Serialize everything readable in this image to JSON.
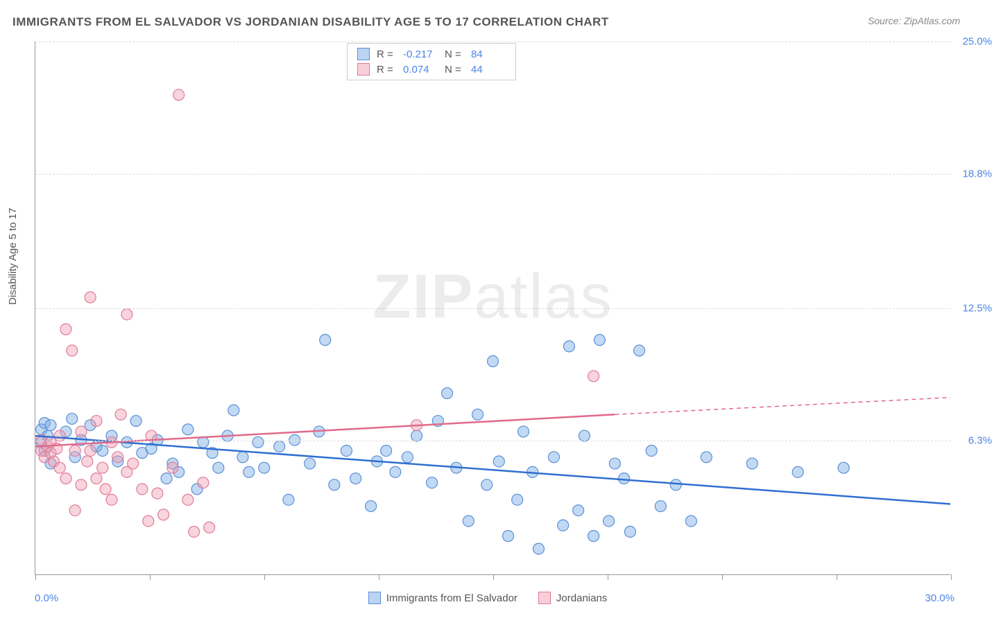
{
  "title": "IMMIGRANTS FROM EL SALVADOR VS JORDANIAN DISABILITY AGE 5 TO 17 CORRELATION CHART",
  "source_prefix": "Source: ",
  "source_name": "ZipAtlas.com",
  "yaxis_label": "Disability Age 5 to 17",
  "watermark_bold": "ZIP",
  "watermark_rest": "atlas",
  "chart": {
    "type": "scatter-with-regression",
    "xlim": [
      0,
      30
    ],
    "ylim": [
      0,
      25
    ],
    "x_min_label": "0.0%",
    "x_max_label": "30.0%",
    "y_ticks": [
      {
        "v": 6.3,
        "label": "6.3%"
      },
      {
        "v": 12.5,
        "label": "12.5%"
      },
      {
        "v": 18.8,
        "label": "18.8%"
      },
      {
        "v": 25.0,
        "label": "25.0%"
      }
    ],
    "x_tick_positions": [
      0,
      3.75,
      7.5,
      11.25,
      15,
      18.75,
      22.5,
      26.25,
      30
    ],
    "grid_color": "#dddddd",
    "background_color": "#ffffff",
    "series": [
      {
        "name": "Immigrants from El Salvador",
        "color_fill": "rgba(120,170,230,0.45)",
        "color_stroke": "#5b8fd6",
        "line_color": "#2f6fd0",
        "R": "-0.217",
        "N": "84",
        "regression": {
          "x1": 0,
          "y1": 6.5,
          "x2": 30,
          "y2": 3.3,
          "dash_after_x": 30
        },
        "points": [
          [
            0.2,
            6.8
          ],
          [
            0.2,
            6.2
          ],
          [
            0.3,
            7.1
          ],
          [
            0.3,
            5.8
          ],
          [
            0.4,
            6.5
          ],
          [
            0.5,
            7.0
          ],
          [
            0.5,
            5.2
          ],
          [
            1.0,
            6.7
          ],
          [
            1.2,
            7.3
          ],
          [
            1.3,
            5.5
          ],
          [
            1.5,
            6.3
          ],
          [
            1.8,
            7.0
          ],
          [
            2.0,
            6.0
          ],
          [
            2.2,
            5.8
          ],
          [
            2.5,
            6.5
          ],
          [
            2.7,
            5.3
          ],
          [
            3.0,
            6.2
          ],
          [
            3.3,
            7.2
          ],
          [
            3.5,
            5.7
          ],
          [
            3.8,
            5.9
          ],
          [
            4.0,
            6.3
          ],
          [
            4.3,
            4.5
          ],
          [
            4.5,
            5.2
          ],
          [
            4.7,
            4.8
          ],
          [
            5.0,
            6.8
          ],
          [
            5.3,
            4.0
          ],
          [
            5.5,
            6.2
          ],
          [
            5.8,
            5.7
          ],
          [
            6.0,
            5.0
          ],
          [
            6.3,
            6.5
          ],
          [
            6.5,
            7.7
          ],
          [
            6.8,
            5.5
          ],
          [
            7.0,
            4.8
          ],
          [
            7.3,
            6.2
          ],
          [
            7.5,
            5.0
          ],
          [
            8.0,
            6.0
          ],
          [
            8.3,
            3.5
          ],
          [
            8.5,
            6.3
          ],
          [
            9.0,
            5.2
          ],
          [
            9.3,
            6.7
          ],
          [
            9.5,
            11.0
          ],
          [
            9.8,
            4.2
          ],
          [
            10.2,
            5.8
          ],
          [
            10.5,
            4.5
          ],
          [
            11.0,
            3.2
          ],
          [
            11.2,
            5.3
          ],
          [
            11.5,
            5.8
          ],
          [
            11.8,
            4.8
          ],
          [
            12.2,
            5.5
          ],
          [
            12.5,
            6.5
          ],
          [
            13.0,
            4.3
          ],
          [
            13.2,
            7.2
          ],
          [
            13.5,
            8.5
          ],
          [
            13.8,
            5.0
          ],
          [
            14.2,
            2.5
          ],
          [
            14.5,
            7.5
          ],
          [
            14.8,
            4.2
          ],
          [
            15.0,
            10.0
          ],
          [
            15.2,
            5.3
          ],
          [
            15.5,
            1.8
          ],
          [
            15.8,
            3.5
          ],
          [
            16.0,
            6.7
          ],
          [
            16.3,
            4.8
          ],
          [
            16.5,
            1.2
          ],
          [
            17.0,
            5.5
          ],
          [
            17.3,
            2.3
          ],
          [
            17.5,
            10.7
          ],
          [
            17.8,
            3.0
          ],
          [
            18.0,
            6.5
          ],
          [
            18.3,
            1.8
          ],
          [
            18.5,
            11.0
          ],
          [
            18.8,
            2.5
          ],
          [
            19.0,
            5.2
          ],
          [
            19.3,
            4.5
          ],
          [
            19.5,
            2.0
          ],
          [
            19.8,
            10.5
          ],
          [
            20.2,
            5.8
          ],
          [
            20.5,
            3.2
          ],
          [
            21.0,
            4.2
          ],
          [
            21.5,
            2.5
          ],
          [
            22.0,
            5.5
          ],
          [
            23.5,
            5.2
          ],
          [
            25.0,
            4.8
          ],
          [
            26.5,
            5.0
          ]
        ]
      },
      {
        "name": "Jordanians",
        "color_fill": "rgba(240,160,180,0.45)",
        "color_stroke": "#e07a9a",
        "line_color": "#e06a8a",
        "R": "0.074",
        "N": "44",
        "regression": {
          "x1": 0,
          "y1": 6.0,
          "x2": 19,
          "y2": 7.5,
          "dash_after_x": 19,
          "x3": 30,
          "y3": 8.3
        },
        "points": [
          [
            0.2,
            5.8
          ],
          [
            0.2,
            6.3
          ],
          [
            0.3,
            5.5
          ],
          [
            0.4,
            6.0
          ],
          [
            0.5,
            5.7
          ],
          [
            0.5,
            6.2
          ],
          [
            0.6,
            5.3
          ],
          [
            0.7,
            5.9
          ],
          [
            0.8,
            6.5
          ],
          [
            0.8,
            5.0
          ],
          [
            1.0,
            11.5
          ],
          [
            1.0,
            4.5
          ],
          [
            1.2,
            10.5
          ],
          [
            1.3,
            5.8
          ],
          [
            1.3,
            3.0
          ],
          [
            1.5,
            4.2
          ],
          [
            1.5,
            6.7
          ],
          [
            1.7,
            5.3
          ],
          [
            1.8,
            13.0
          ],
          [
            1.8,
            5.8
          ],
          [
            2.0,
            4.5
          ],
          [
            2.0,
            7.2
          ],
          [
            2.2,
            5.0
          ],
          [
            2.3,
            4.0
          ],
          [
            2.5,
            6.2
          ],
          [
            2.5,
            3.5
          ],
          [
            2.7,
            5.5
          ],
          [
            2.8,
            7.5
          ],
          [
            3.0,
            4.8
          ],
          [
            3.0,
            12.2
          ],
          [
            3.2,
            5.2
          ],
          [
            3.5,
            4.0
          ],
          [
            3.7,
            2.5
          ],
          [
            3.8,
            6.5
          ],
          [
            4.0,
            3.8
          ],
          [
            4.2,
            2.8
          ],
          [
            4.5,
            5.0
          ],
          [
            4.7,
            22.5
          ],
          [
            5.0,
            3.5
          ],
          [
            5.2,
            2.0
          ],
          [
            5.5,
            4.3
          ],
          [
            5.7,
            2.2
          ],
          [
            12.5,
            7.0
          ],
          [
            18.3,
            9.3
          ]
        ]
      }
    ]
  },
  "legend_top": {
    "rows": [
      {
        "swatch": "blue",
        "r_label": "R =",
        "r_val": "-0.217",
        "n_label": "N =",
        "n_val": "84"
      },
      {
        "swatch": "pink",
        "r_label": "R =",
        "r_val": "0.074",
        "n_label": "N =",
        "n_val": "44"
      }
    ]
  },
  "legend_bottom": [
    {
      "swatch": "blue",
      "label": "Immigrants from El Salvador"
    },
    {
      "swatch": "pink",
      "label": "Jordanians"
    }
  ]
}
